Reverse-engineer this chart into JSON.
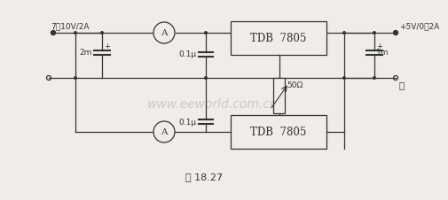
{
  "bg_color": "#f0ede8",
  "line_color": "#333333",
  "watermark_color": "#b0b8c0",
  "watermark_text": "www.eeworld.com.cn",
  "caption": "图 18.27",
  "title_left": "7－10V/2A",
  "title_right": "+5V/0～2A",
  "label_2m": "2m",
  "label_1m": "1m",
  "label_01u_top": "0.1μ",
  "label_01u_bot": "0.1μ",
  "label_50ohm": "50Ω",
  "label_tdb_top": "TDB  7805",
  "label_tdb_bot": "TDB  7805",
  "label_A": "A",
  "label_plus": "+",
  "label_minus": "－"
}
